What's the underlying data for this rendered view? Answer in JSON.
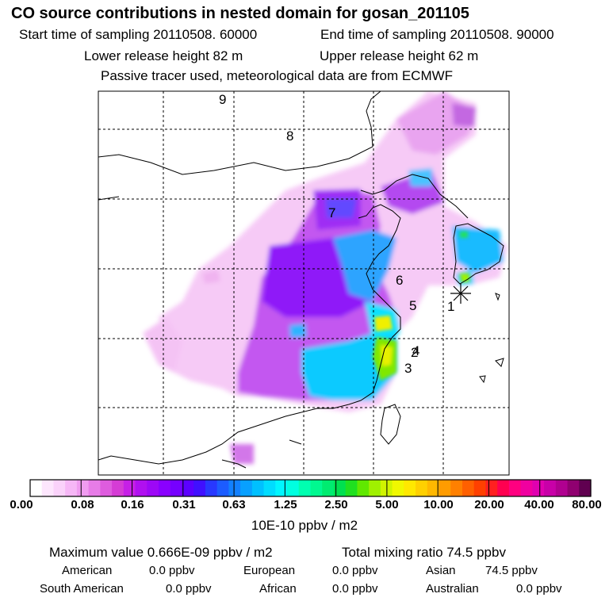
{
  "header": {
    "title": "CO  source contributions in nested domain for gosan_201105",
    "start": "Start time of sampling 20110508. 60000",
    "end": "End time of sampling 20110508. 90000",
    "lower": "Lower release height   82 m",
    "upper": "Upper release height   62 m",
    "tracer": "Passive tracer used, meteorological data are from ECMWF"
  },
  "map": {
    "trajectory_labels": [
      "1",
      "2",
      "3",
      "4",
      "5",
      "6",
      "7",
      "8",
      "9"
    ],
    "receptor_symbol": "star-receptor"
  },
  "colorbar": {
    "unit": "10E-10 ppbv / m2",
    "ticks": [
      "0.00",
      "0.08",
      "0.16",
      "0.31",
      "0.63",
      "1.25",
      "2.50",
      "5.00",
      "10.00",
      "20.00",
      "40.00",
      "80.00"
    ],
    "colors": [
      "#ffffff",
      "#fde6fd",
      "#fad2fa",
      "#f6b7f6",
      "#f09cf0",
      "#e77ce7",
      "#de5cde",
      "#d53cd5",
      "#c620e6",
      "#b010f0",
      "#9d08f6",
      "#8a00ff",
      "#7600ff",
      "#5c00ff",
      "#4010ff",
      "#2838ff",
      "#1c5cff",
      "#1280ff",
      "#08a0ff",
      "#00c0ff",
      "#00dcff",
      "#00f6ff",
      "#00ffe0",
      "#00ffb0",
      "#00f890",
      "#00ec70",
      "#00e050",
      "#20e020",
      "#60e800",
      "#a0f000",
      "#d0f400",
      "#f0f800",
      "#ffe800",
      "#ffd000",
      "#ffb800",
      "#ff9c00",
      "#ff8000",
      "#ff6000",
      "#ff4000",
      "#ff2020",
      "#ff0050",
      "#ff0080",
      "#f000a0",
      "#e000b0",
      "#c800a8",
      "#b00090",
      "#900070",
      "#600050"
    ]
  },
  "stats": {
    "max": "Maximum value  0.666E-09 ppbv / m2",
    "total": "Total mixing ratio       74.5 ppbv",
    "american_label": "American",
    "american_val": "0.0 ppbv",
    "european_label": "European",
    "european_val": "0.0 ppbv",
    "asian_label": "Asian",
    "asian_val": "74.5 ppbv",
    "southam_label": "South American",
    "southam_val": "0.0 ppbv",
    "african_label": "African",
    "african_val": "0.0 ppbv",
    "australian_label": "Australian",
    "australian_val": "0.0 ppbv"
  }
}
